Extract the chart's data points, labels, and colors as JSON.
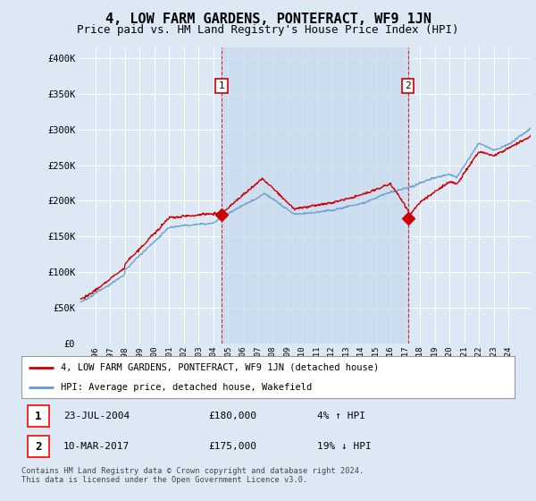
{
  "title": "4, LOW FARM GARDENS, PONTEFRACT, WF9 1JN",
  "subtitle": "Price paid vs. HM Land Registry's House Price Index (HPI)",
  "title_fontsize": 11,
  "subtitle_fontsize": 9,
  "ylabel_ticks": [
    "£0",
    "£50K",
    "£100K",
    "£150K",
    "£200K",
    "£250K",
    "£300K",
    "£350K",
    "£400K"
  ],
  "ytick_values": [
    0,
    50000,
    100000,
    150000,
    200000,
    250000,
    300000,
    350000,
    400000
  ],
  "ylim": [
    0,
    415000
  ],
  "xlim_start": 1994.8,
  "xlim_end": 2025.5,
  "background_color": "#dce9f5",
  "shade_color": "#c8d8ef",
  "grid_color": "#ffffff",
  "red_line_color": "#cc0000",
  "blue_line_color": "#6699cc",
  "marker1_x": 2004.55,
  "marker1_y": 180000,
  "marker2_x": 2017.19,
  "marker2_y": 175000,
  "marker1_label": "1",
  "marker2_label": "2",
  "legend_line1": "4, LOW FARM GARDENS, PONTEFRACT, WF9 1JN (detached house)",
  "legend_line2": "HPI: Average price, detached house, Wakefield",
  "annotation1_date": "23-JUL-2004",
  "annotation1_price": "£180,000",
  "annotation1_hpi": "4% ↑ HPI",
  "annotation2_date": "10-MAR-2017",
  "annotation2_price": "£175,000",
  "annotation2_hpi": "19% ↓ HPI",
  "footer": "Contains HM Land Registry data © Crown copyright and database right 2024.\nThis data is licensed under the Open Government Licence v3.0.",
  "xtick_years": [
    1996,
    1997,
    1998,
    1999,
    2000,
    2001,
    2002,
    2003,
    2004,
    2005,
    2006,
    2007,
    2008,
    2009,
    2010,
    2011,
    2012,
    2013,
    2014,
    2015,
    2016,
    2017,
    2018,
    2019,
    2020,
    2021,
    2022,
    2023,
    2024
  ]
}
